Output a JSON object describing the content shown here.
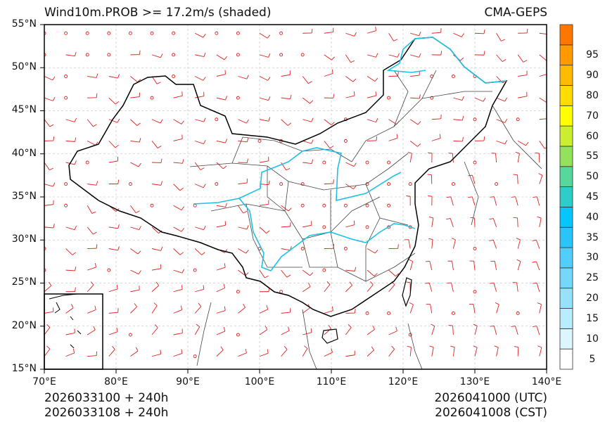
{
  "header": {
    "title": "Wind10m.PROB >= 17.2m/s (shaded)",
    "model": "CMA-GEPS"
  },
  "map": {
    "extent": {
      "lon_min": 70,
      "lon_max": 140,
      "lat_min": 15,
      "lat_max": 55
    },
    "lat_ticks": [
      "55°N",
      "50°N",
      "45°N",
      "40°N",
      "35°N",
      "30°N",
      "25°N",
      "20°N",
      "15°N"
    ],
    "lon_ticks": [
      "70°E",
      "80°E",
      "90°E",
      "100°E",
      "110°E",
      "120°E",
      "130°E",
      "140°E"
    ],
    "grid": "dashed light gray",
    "layers": [
      "wind barbs (red)",
      "calm circles (red)",
      "national boundary (black)",
      "provincial boundaries (gray)",
      "rivers (cyan)",
      "South China Sea inset (lower left)"
    ],
    "barb_color": "#e0201e",
    "river_color": "#1ec0e6",
    "boundary_color": "#000000"
  },
  "colorbar": {
    "levels": [
      "5",
      "10",
      "15",
      "20",
      "25",
      "30",
      "35",
      "40",
      "45",
      "50",
      "55",
      "60",
      "70",
      "80",
      "90",
      "95"
    ],
    "colors": [
      "#ffffff",
      "#dcf6fe",
      "#b9ecfc",
      "#96e2fb",
      "#74d8fa",
      "#52cefa",
      "#2ac4fa",
      "#06c6fc",
      "#2ecdc8",
      "#58d79c",
      "#92e25a",
      "#ccee30",
      "#ffff00",
      "#ffdd00",
      "#ffbb00",
      "#ff9900",
      "#ff7700"
    ]
  },
  "footer": {
    "init_utc": "2026033100 + 240h",
    "init_cst": "2026033108 + 240h",
    "valid_utc": "2026041000 (UTC)",
    "valid_cst": "2026041008 (CST)"
  }
}
